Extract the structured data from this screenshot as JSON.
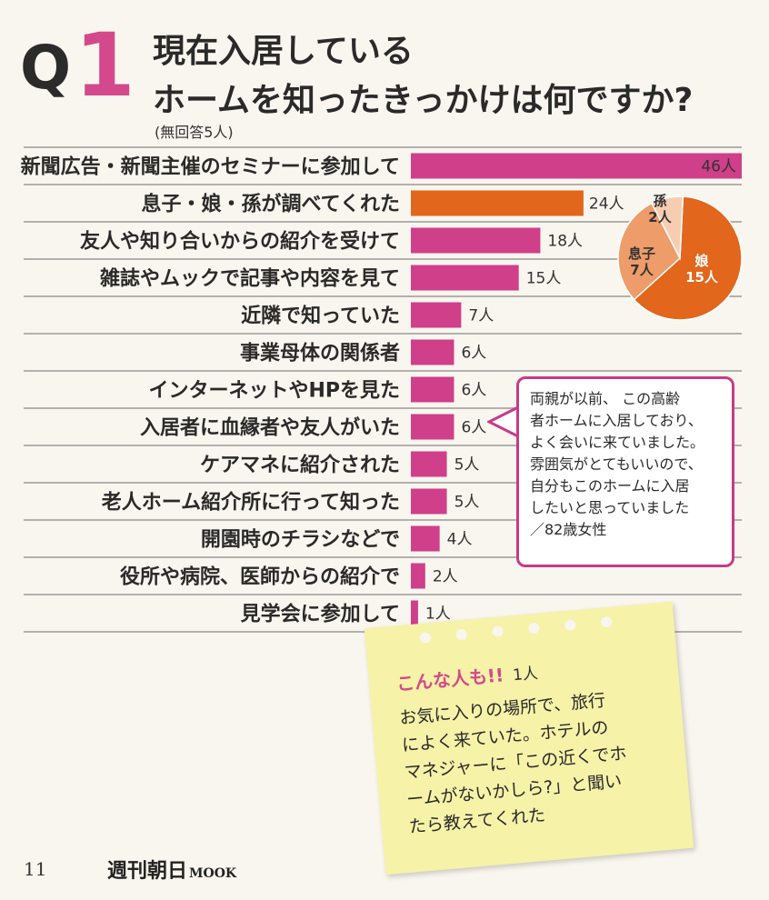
{
  "header": {
    "q_letter": "Q",
    "q_number": "1",
    "title_line1": "現在入居している",
    "title_line2": "ホームを知ったきっかけは何ですか?",
    "note": "(無回答5人)"
  },
  "chart_data": [
    {
      "type": "bar",
      "orientation": "horizontal",
      "categories": [
        "新聞広告・新聞主催のセミナーに参加して",
        "息子・娘・孫が調べてくれた",
        "友人や知り合いからの紹介を受けて",
        "雑誌やムックで記事や内容を見て",
        "近隣で知っていた",
        "事業母体の関係者",
        "インターネットやHPを見た",
        "入居者に血縁者や友人がいた",
        "ケアマネに紹介された",
        "老人ホーム紹介所に行って知った",
        "開園時のチラシなどで",
        "役所や病院、医師からの紹介で",
        "見学会に参加して"
      ],
      "values": [
        46,
        24,
        18,
        15,
        7,
        6,
        6,
        6,
        5,
        5,
        4,
        2,
        1
      ],
      "value_labels": [
        "46人",
        "24人",
        "18人",
        "15人",
        "7人",
        "6人",
        "6人",
        "6人",
        "5人",
        "5人",
        "4人",
        "2人",
        "1人"
      ],
      "highlight_index": 1,
      "colors": {
        "bar": "#cf3f8a",
        "highlight": "#e2661c"
      }
    },
    {
      "type": "pie",
      "labels": [
        "娘",
        "息子",
        "孫"
      ],
      "values": [
        15,
        7,
        2
      ],
      "value_labels": [
        "15人",
        "7人",
        "2人"
      ],
      "colors": [
        "#e2661c",
        "#ee9c6a",
        "#f7cdb1"
      ]
    }
  ],
  "callout": {
    "lines": [
      "両親が以前、 この高齢",
      "者ホームに入居しており、",
      "よく会いに来ていました。",
      "雰囲気がとてもいいので、",
      "自分もこのホームに入居",
      "したいと思っていました",
      "／82歳女性"
    ]
  },
  "sticky": {
    "heading": "こんな人も!!",
    "count": "1人",
    "lines": [
      "お気に入りの場所で、旅行",
      "によく来ていた。ホテルの",
      "マネジャーに「この近くでホ",
      "ームがないかしら?」と聞い",
      "たら教えてくれた"
    ]
  },
  "footer": {
    "page_number": "11",
    "brand": "週刊朝日",
    "brand_sub": "MOOK"
  }
}
